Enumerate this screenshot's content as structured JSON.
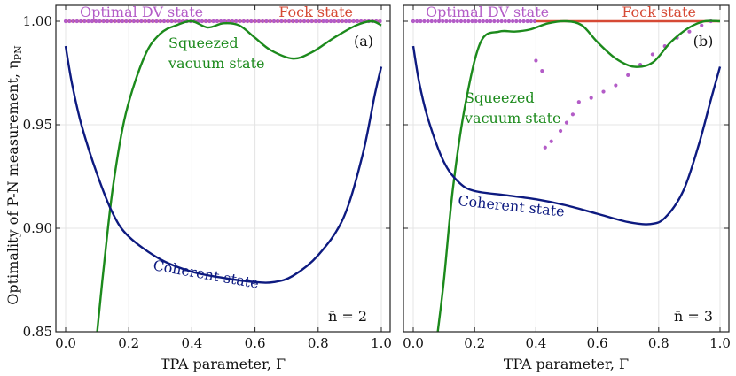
{
  "chart_data": {
    "type": "line",
    "ylabel": "Optimality of P-N measurement, η",
    "ylabel_sub": "PN",
    "ylim": [
      0.85,
      1.0
    ],
    "xlim": [
      0.0,
      1.0
    ],
    "yticks": [
      "0.85",
      "0.90",
      "0.95",
      "1.00"
    ],
    "xticks": [
      "0.0",
      "0.2",
      "0.4",
      "0.6",
      "0.8",
      "1.0"
    ],
    "colors": {
      "fock": "#d64a35",
      "optimal_dv": "#b35cc7",
      "squeezed": "#1c8a1c",
      "coherent": "#0d1a80"
    },
    "panels": [
      {
        "tag": "(a)",
        "nbar_label": "n̄ = 2",
        "xlabel": "TPA parameter, Γ",
        "labels": {
          "optimal_dv": "Optimal DV state",
          "fock": "Fock state",
          "squeezed_1": "Squeezed",
          "squeezed_2": "vacuum state",
          "coherent": "Coherent state"
        },
        "series": [
          {
            "name": "Fock state",
            "key": "fock",
            "points": [
              [
                0.0,
                1.0
              ],
              [
                1.0,
                1.0
              ]
            ]
          },
          {
            "name": "Optimal DV state",
            "key": "optimal_dv",
            "style": "dots",
            "x_range": [
              0.0,
              1.0
            ],
            "y": 1.0
          },
          {
            "name": "Squeezed vacuum state",
            "key": "squeezed",
            "points": [
              [
                0.1,
                0.85
              ],
              [
                0.12,
                0.88
              ],
              [
                0.15,
                0.92
              ],
              [
                0.19,
                0.955
              ],
              [
                0.25,
                0.983
              ],
              [
                0.3,
                0.994
              ],
              [
                0.35,
                0.998
              ],
              [
                0.4,
                1.0
              ],
              [
                0.45,
                0.997
              ],
              [
                0.5,
                0.999
              ],
              [
                0.55,
                0.998
              ],
              [
                0.6,
                0.992
              ],
              [
                0.65,
                0.986
              ],
              [
                0.72,
                0.982
              ],
              [
                0.78,
                0.985
              ],
              [
                0.85,
                0.992
              ],
              [
                0.92,
                0.998
              ],
              [
                0.97,
                1.0
              ],
              [
                1.0,
                0.998
              ]
            ]
          },
          {
            "name": "Coherent state",
            "key": "coherent",
            "points": [
              [
                0.0,
                0.988
              ],
              [
                0.02,
                0.97
              ],
              [
                0.05,
                0.95
              ],
              [
                0.1,
                0.926
              ],
              [
                0.15,
                0.907
              ],
              [
                0.2,
                0.896
              ],
              [
                0.3,
                0.885
              ],
              [
                0.4,
                0.879
              ],
              [
                0.5,
                0.876
              ],
              [
                0.6,
                0.874
              ],
              [
                0.66,
                0.874
              ],
              [
                0.72,
                0.877
              ],
              [
                0.8,
                0.887
              ],
              [
                0.88,
                0.905
              ],
              [
                0.94,
                0.935
              ],
              [
                0.98,
                0.965
              ],
              [
                1.0,
                0.978
              ]
            ]
          }
        ]
      },
      {
        "tag": "(b)",
        "nbar_label": "n̄ = 3",
        "xlabel": "TPA parameter, Γ",
        "labels": {
          "optimal_dv": "Optimal DV state",
          "fock": "Fock state",
          "squeezed_1": "Squeezed",
          "squeezed_2": "vacuum state",
          "coherent": "Coherent state"
        },
        "series": [
          {
            "name": "Fock state",
            "key": "fock",
            "points": [
              [
                0.4,
                1.0
              ],
              [
                1.0,
                1.0
              ]
            ]
          },
          {
            "name": "Optimal DV state",
            "key": "optimal_dv",
            "style": "dots",
            "x_range": [
              0.0,
              0.4
            ],
            "y": 1.0
          },
          {
            "name": "Optimal DV state (branch)",
            "key": "optimal_dv",
            "style": "dots",
            "points": [
              [
                0.4,
                0.981
              ],
              [
                0.42,
                0.976
              ]
            ]
          },
          {
            "name": "Optimal DV state (rising)",
            "key": "optimal_dv",
            "style": "dots",
            "points": [
              [
                0.43,
                0.939
              ],
              [
                0.45,
                0.942
              ],
              [
                0.48,
                0.947
              ],
              [
                0.5,
                0.951
              ],
              [
                0.52,
                0.955
              ],
              [
                0.54,
                0.961
              ],
              [
                0.58,
                0.963
              ],
              [
                0.62,
                0.966
              ],
              [
                0.66,
                0.969
              ],
              [
                0.7,
                0.974
              ],
              [
                0.74,
                0.979
              ],
              [
                0.78,
                0.984
              ],
              [
                0.82,
                0.988
              ],
              [
                0.86,
                0.992
              ],
              [
                0.9,
                0.995
              ],
              [
                0.94,
                0.998
              ],
              [
                0.97,
                1.0
              ]
            ]
          },
          {
            "name": "Squeezed vacuum state",
            "key": "squeezed",
            "points": [
              [
                0.08,
                0.85
              ],
              [
                0.1,
                0.875
              ],
              [
                0.13,
                0.92
              ],
              [
                0.17,
                0.96
              ],
              [
                0.22,
                0.99
              ],
              [
                0.28,
                0.995
              ],
              [
                0.33,
                0.995
              ],
              [
                0.38,
                0.996
              ],
              [
                0.44,
                0.999
              ],
              [
                0.5,
                1.0
              ],
              [
                0.55,
                0.998
              ],
              [
                0.6,
                0.99
              ],
              [
                0.66,
                0.982
              ],
              [
                0.72,
                0.978
              ],
              [
                0.78,
                0.98
              ],
              [
                0.84,
                0.99
              ],
              [
                0.9,
                0.997
              ],
              [
                0.95,
                1.0
              ],
              [
                1.0,
                1.0
              ]
            ]
          },
          {
            "name": "Coherent state",
            "key": "coherent",
            "points": [
              [
                0.0,
                0.988
              ],
              [
                0.02,
                0.97
              ],
              [
                0.05,
                0.952
              ],
              [
                0.1,
                0.932
              ],
              [
                0.15,
                0.922
              ],
              [
                0.2,
                0.918
              ],
              [
                0.3,
                0.916
              ],
              [
                0.4,
                0.914
              ],
              [
                0.5,
                0.911
              ],
              [
                0.6,
                0.907
              ],
              [
                0.7,
                0.903
              ],
              [
                0.77,
                0.902
              ],
              [
                0.82,
                0.905
              ],
              [
                0.88,
                0.918
              ],
              [
                0.93,
                0.94
              ],
              [
                0.97,
                0.962
              ],
              [
                1.0,
                0.978
              ]
            ]
          }
        ]
      }
    ]
  }
}
